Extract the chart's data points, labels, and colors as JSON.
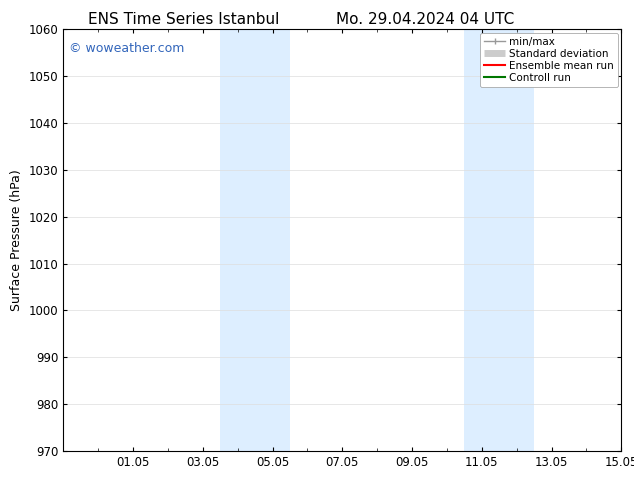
{
  "title_left": "ENS Time Series Istanbul",
  "title_right": "Mo. 29.04.2024 04 UTC",
  "ylabel": "Surface Pressure (hPa)",
  "ylim": [
    970,
    1060
  ],
  "yticks": [
    970,
    980,
    990,
    1000,
    1010,
    1020,
    1030,
    1040,
    1050,
    1060
  ],
  "xtick_labels": [
    "01.05",
    "03.05",
    "05.05",
    "07.05",
    "09.05",
    "11.05",
    "13.05",
    "15.05"
  ],
  "xtick_positions": [
    2,
    4,
    6,
    8,
    10,
    12,
    14,
    16
  ],
  "shaded_bands": [
    {
      "x_start": 4.5,
      "x_end": 5.5
    },
    {
      "x_start": 5.5,
      "x_end": 6.5
    },
    {
      "x_start": 11.5,
      "x_end": 12.5
    },
    {
      "x_start": 12.5,
      "x_end": 13.5
    }
  ],
  "shaded_color": "#ddeeff",
  "watermark": "© woweather.com",
  "watermark_color": "#3366bb",
  "legend_entries": [
    {
      "label": "min/max",
      "color": "#999999",
      "lw": 1.0
    },
    {
      "label": "Standard deviation",
      "color": "#cccccc",
      "lw": 5
    },
    {
      "label": "Ensemble mean run",
      "color": "#ff0000",
      "lw": 1.5
    },
    {
      "label": "Controll run",
      "color": "#007700",
      "lw": 1.5
    }
  ],
  "background_color": "#ffffff",
  "grid_color": "#dddddd",
  "title_fontsize": 11,
  "axis_fontsize": 9,
  "tick_fontsize": 8.5,
  "watermark_fontsize": 9
}
